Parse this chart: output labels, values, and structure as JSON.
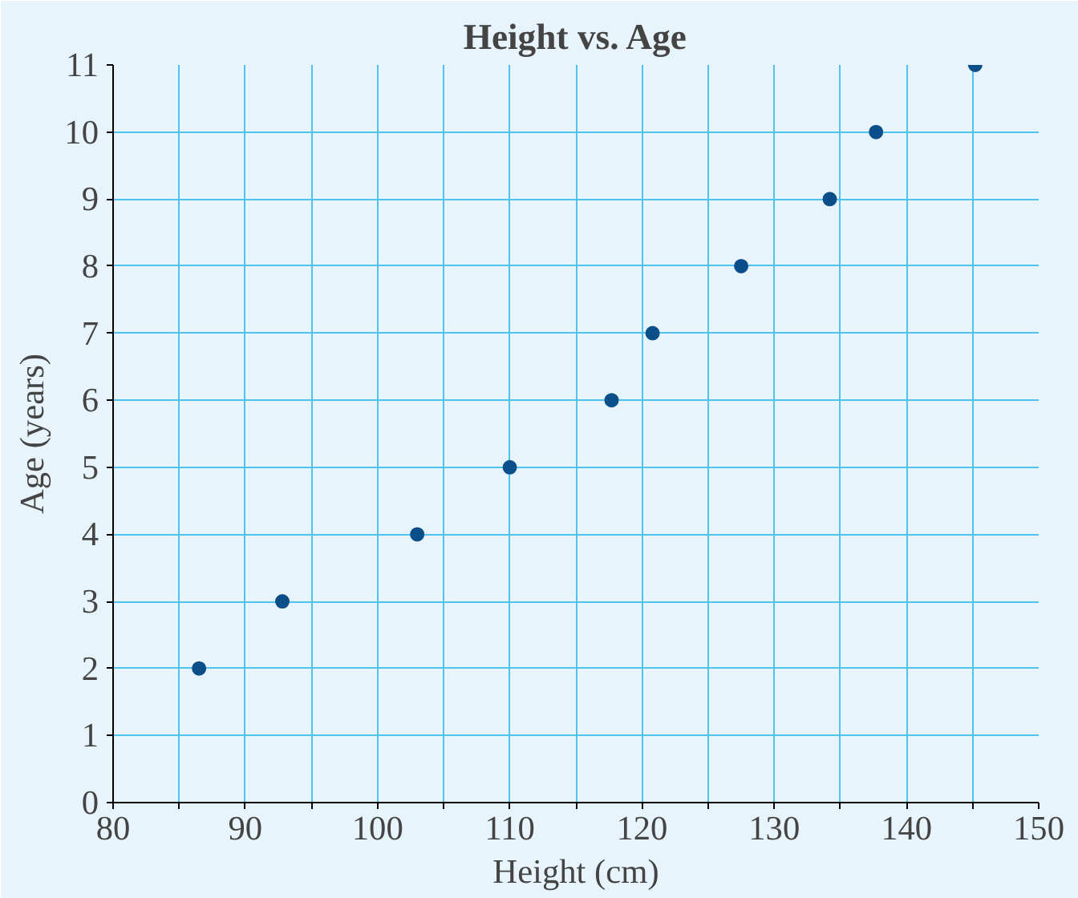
{
  "chart_data": {
    "type": "scatter",
    "title": "Height vs. Age",
    "xlabel": "Height (cm)",
    "ylabel": "Age (years)",
    "x": [
      86.5,
      92.8,
      103,
      110,
      117.7,
      120.8,
      127.5,
      134.2,
      137.7,
      145.2
    ],
    "series": [
      {
        "color": "#0b4f8a",
        "values": [
          2,
          3,
          4,
          5,
          6,
          7,
          8,
          9,
          10,
          11
        ]
      }
    ],
    "xlim": [
      80,
      150
    ],
    "ylim": [
      0,
      11
    ],
    "xticks": [
      80,
      {
        "value": 85,
        "label": null
      },
      90,
      {
        "value": 95,
        "label": null
      },
      100,
      {
        "value": 105,
        "label": null
      },
      110,
      {
        "value": 115,
        "label": null
      },
      120,
      {
        "value": 125,
        "label": null
      },
      130,
      {
        "value": 135,
        "label": null
      },
      140,
      {
        "value": 145,
        "label": null
      },
      150
    ],
    "yticks": [
      0,
      1,
      2,
      3,
      4,
      5,
      6,
      7,
      8,
      9,
      10,
      11
    ],
    "grid": true,
    "marker": "circle"
  }
}
